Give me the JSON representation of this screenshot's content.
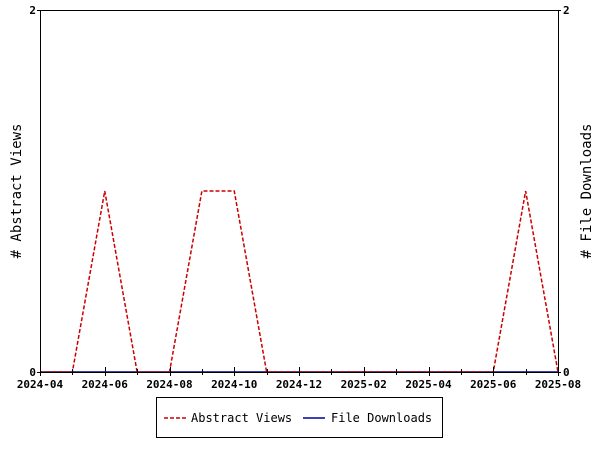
{
  "chart_data": {
    "type": "line",
    "title": "",
    "xlabel": "",
    "ylabel_left": "# Abstract Views",
    "ylabel_right": "# File Downloads",
    "x_ticks": [
      "2024-04",
      "2024-06",
      "2024-08",
      "2024-10",
      "2024-12",
      "2025-02",
      "2025-04",
      "2025-06",
      "2025-08"
    ],
    "x_range": [
      "2024-04",
      "2025-08"
    ],
    "ylim_left": [
      0,
      2
    ],
    "ylim_right": [
      0,
      2
    ],
    "y_ticks_left": [
      "0",
      "2"
    ],
    "y_ticks_right": [
      "0",
      "2"
    ],
    "grid": false,
    "legend_position": "bottom",
    "series": [
      {
        "name": "Abstract Views",
        "axis": "left",
        "color": "#cc0000",
        "style": "dashed",
        "points": [
          {
            "x": "2024-04",
            "y": 0
          },
          {
            "x": "2024-05",
            "y": 0
          },
          {
            "x": "2024-06",
            "y": 1
          },
          {
            "x": "2024-07",
            "y": 0
          },
          {
            "x": "2024-08",
            "y": 0
          },
          {
            "x": "2024-09",
            "y": 1
          },
          {
            "x": "2024-10",
            "y": 1
          },
          {
            "x": "2024-11",
            "y": 0
          },
          {
            "x": "2024-12",
            "y": 0
          },
          {
            "x": "2025-01",
            "y": 0
          },
          {
            "x": "2025-02",
            "y": 0
          },
          {
            "x": "2025-03",
            "y": 0
          },
          {
            "x": "2025-04",
            "y": 0
          },
          {
            "x": "2025-05",
            "y": 0
          },
          {
            "x": "2025-06",
            "y": 0
          },
          {
            "x": "2025-07",
            "y": 1
          },
          {
            "x": "2025-08",
            "y": 0
          }
        ]
      },
      {
        "name": "File Downloads",
        "axis": "right",
        "color": "#000099",
        "style": "solid",
        "points": [
          {
            "x": "2024-04",
            "y": 0
          },
          {
            "x": "2024-05",
            "y": 0
          },
          {
            "x": "2024-06",
            "y": 0
          },
          {
            "x": "2024-07",
            "y": 0
          },
          {
            "x": "2024-08",
            "y": 0
          },
          {
            "x": "2024-09",
            "y": 0
          },
          {
            "x": "2024-10",
            "y": 0
          },
          {
            "x": "2024-11",
            "y": 0
          },
          {
            "x": "2024-12",
            "y": 0
          },
          {
            "x": "2025-01",
            "y": 0
          },
          {
            "x": "2025-02",
            "y": 0
          },
          {
            "x": "2025-03",
            "y": 0
          },
          {
            "x": "2025-04",
            "y": 0
          },
          {
            "x": "2025-05",
            "y": 0
          },
          {
            "x": "2025-06",
            "y": 0
          },
          {
            "x": "2025-07",
            "y": 0
          },
          {
            "x": "2025-08",
            "y": 0
          }
        ]
      }
    ]
  }
}
